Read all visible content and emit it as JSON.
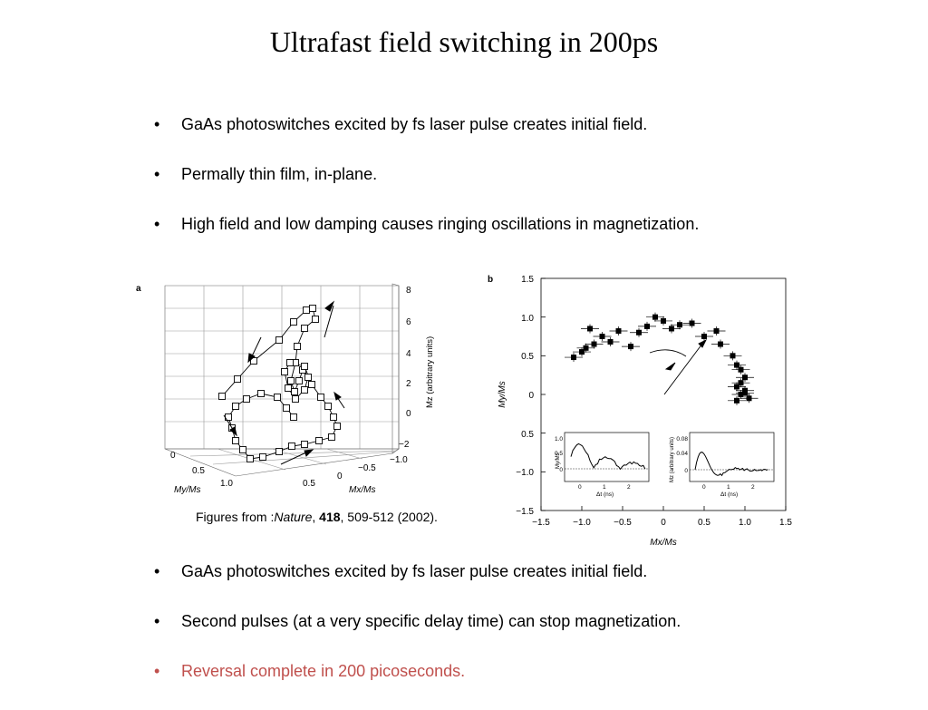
{
  "slide": {
    "title": "Ultrafast field switching in 200ps",
    "bullets_top": [
      "GaAs photoswitches excited by fs laser pulse creates initial field.",
      "Permally thin film, in-plane.",
      "High field and low damping causes ringing oscillations in magnetization."
    ],
    "bullets_bottom": [
      "GaAs photoswitches excited by fs laser pulse creates initial field.",
      "Second pulses (at a very specific delay time) can stop magnetization.",
      "Reversal complete in 200 picoseconds."
    ],
    "bullet_char": "•",
    "accent_color": "#c0504d",
    "caption": {
      "prefix": "Figures from :",
      "journal": "Nature",
      "sep": ", ",
      "volume": "418",
      "rest": ", 509-512 (2002)."
    }
  },
  "figure_a": {
    "panel_label": "a",
    "z_ticks": [
      "8",
      "6",
      "4",
      "2",
      "0",
      "−2"
    ],
    "z_label": "Mz (arbitrary units)",
    "y_ticks": [
      "0",
      "0.5",
      "1.0"
    ],
    "y_label": "My/Ms",
    "x_ticks": [
      "−1.0",
      "−0.5",
      "0",
      "0.5"
    ],
    "x_label": "Mx/Ms"
  },
  "chart_data": {
    "type": "scatter",
    "panel_label": "b",
    "xlabel": "Mx/Ms",
    "ylabel": "My/Ms",
    "xlim": [
      -1.5,
      1.5
    ],
    "ylim": [
      -1.5,
      1.5
    ],
    "x_ticks": [
      "−1.5",
      "−1.0",
      "−0.5",
      "0",
      "0.5",
      "1.0",
      "1.5"
    ],
    "y_ticks": [
      "1.5",
      "1.0",
      "0.5",
      "0",
      "0.5",
      "−1.0",
      "−1.5"
    ],
    "x": [
      -1.1,
      -1.0,
      -0.95,
      -0.9,
      -0.85,
      -0.75,
      -0.65,
      -0.55,
      -0.4,
      -0.3,
      -0.2,
      -0.1,
      0.0,
      0.1,
      0.2,
      0.35,
      0.5,
      0.65,
      0.7,
      0.85,
      0.9,
      0.95,
      1.0,
      0.95,
      0.9,
      1.0,
      0.95,
      1.05,
      0.9,
      1.0
    ],
    "y": [
      0.48,
      0.55,
      0.6,
      0.85,
      0.65,
      0.75,
      0.68,
      0.82,
      0.62,
      0.8,
      0.88,
      1.0,
      0.95,
      0.85,
      0.9,
      0.92,
      0.75,
      0.82,
      0.65,
      0.5,
      0.38,
      0.32,
      0.22,
      0.15,
      0.1,
      0.05,
      0.0,
      -0.05,
      -0.08,
      0.02
    ],
    "inset1": {
      "ylabel": "My/Ms",
      "xlabel": "Δt (ns)",
      "y_ticks": [
        "1.0",
        "0.5",
        "0"
      ],
      "x_ticks": [
        "0",
        "1",
        "2"
      ]
    },
    "inset2": {
      "ylabel": "Mz (arbitrary units)",
      "xlabel": "Δt (ns)",
      "y_ticks": [
        "0.08",
        "0.04",
        "0"
      ],
      "x_ticks": [
        "0",
        "1",
        "2"
      ]
    }
  }
}
